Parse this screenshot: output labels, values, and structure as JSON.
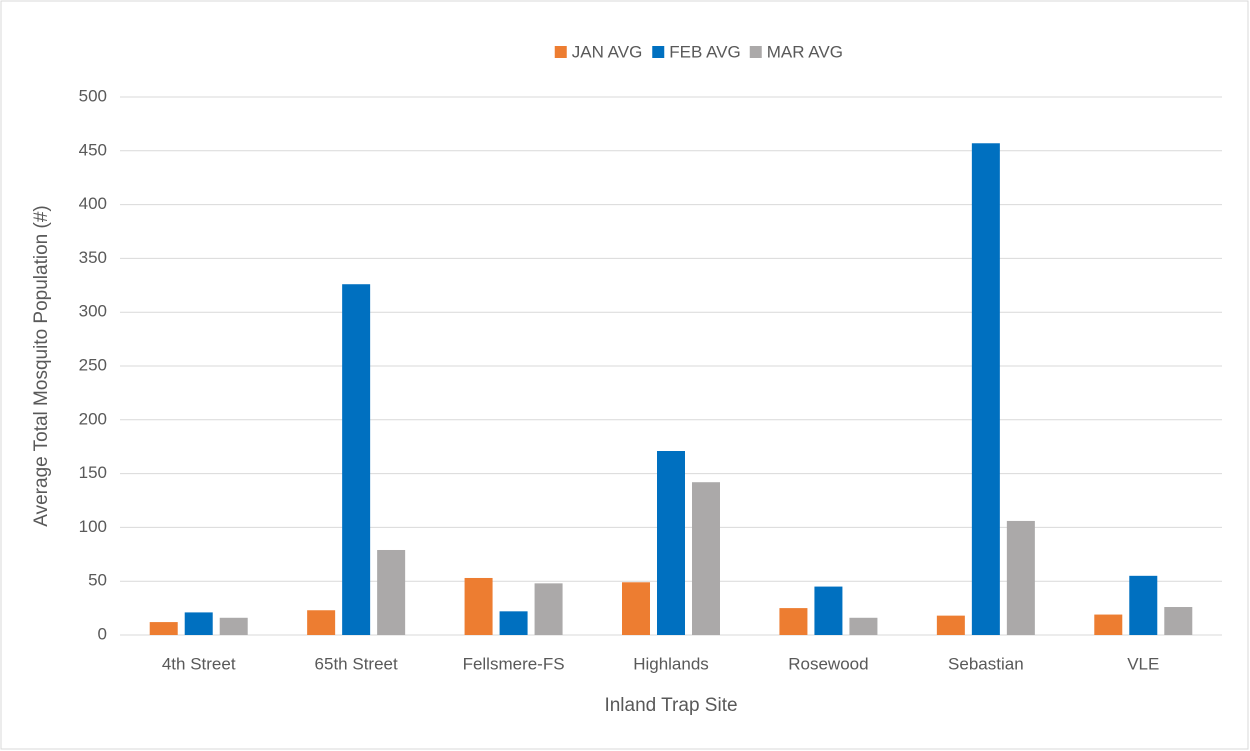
{
  "chart_data": {
    "type": "bar",
    "categories": [
      "4th Street",
      "65th Street",
      "Fellsmere-FS",
      "Highlands",
      "Rosewood",
      "Sebastian",
      "VLE"
    ],
    "series": [
      {
        "name": "JAN AVG",
        "color": "#ED7D31",
        "values": [
          12,
          23,
          53,
          49,
          25,
          18,
          19
        ]
      },
      {
        "name": "FEB AVG",
        "color": "#0070C0",
        "values": [
          21,
          326,
          22,
          171,
          45,
          457,
          55
        ]
      },
      {
        "name": "MAR AVG",
        "color": "#ABA9A9",
        "values": [
          16,
          79,
          48,
          142,
          16,
          106,
          26
        ]
      }
    ],
    "x_label": "Inland Trap Site",
    "y_label": "Average Total Mosquito Population (#)",
    "ylim": [
      0,
      500
    ],
    "yticks": [
      0,
      50,
      100,
      150,
      200,
      250,
      300,
      350,
      400,
      450,
      500
    ],
    "grid": true,
    "legend": "top"
  }
}
